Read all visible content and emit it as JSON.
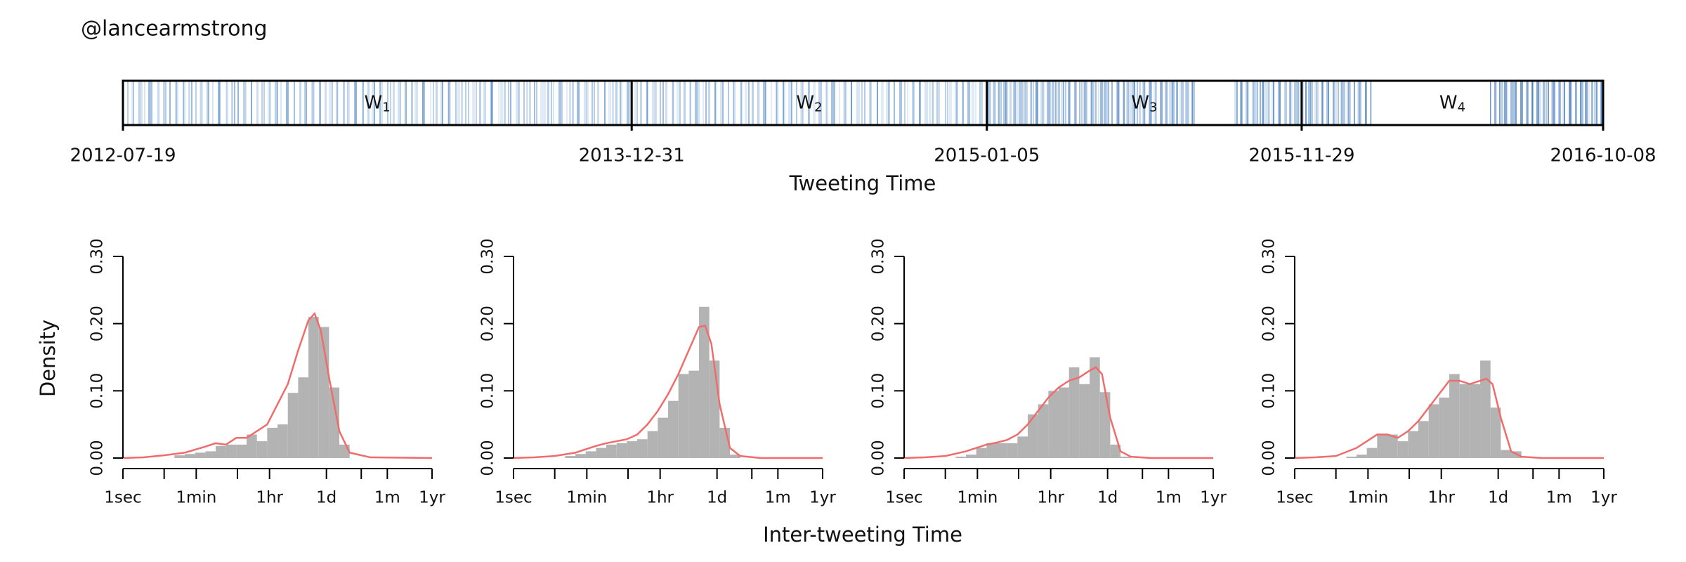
{
  "page": {
    "title": "@lancearmstrong",
    "ylabel": "Density",
    "xlabel": "Inter-tweeting Time"
  },
  "chart_data": [
    {
      "type": "timeline",
      "xlabel": "Tweeting Time",
      "x": [
        "2012-07-19",
        "2013-12-31",
        "2015-01-05",
        "2015-11-29",
        "2016-10-08"
      ],
      "windows": [
        {
          "name": "W",
          "sub": "1"
        },
        {
          "name": "W",
          "sub": "2"
        },
        {
          "name": "W",
          "sub": "3"
        },
        {
          "name": "W",
          "sub": "4"
        }
      ],
      "color": "#3a7cc4"
    },
    {
      "type": "histogram",
      "xlog": true,
      "xlim": [
        1,
        31536000
      ],
      "ylim": [
        0,
        0.3
      ],
      "xticks": [
        {
          "value": 1,
          "label": "1sec"
        },
        {
          "value": 60,
          "label": "1min"
        },
        {
          "value": 3600,
          "label": "1hr"
        },
        {
          "value": 86400,
          "label": "1d"
        },
        {
          "value": 2592000,
          "label": "1m"
        },
        {
          "value": 31536000,
          "label": "1yr"
        }
      ],
      "xminor": [
        10,
        600,
        604800
      ],
      "yticks": [
        {
          "value": 0,
          "label": "0.00"
        },
        {
          "value": 0.1,
          "label": "0.10"
        },
        {
          "value": 0.2,
          "label": "0.20"
        },
        {
          "value": 0.3,
          "label": "0.30"
        }
      ],
      "color": "#b3b3b3",
      "bins": [
        10,
        17.78,
        31.62,
        56.23,
        100,
        177.8,
        316.2,
        562.3,
        1000,
        1778,
        3162,
        5623,
        10000,
        17783,
        31623,
        56234,
        100000,
        177828,
        316228,
        562341,
        1000000
      ],
      "values": [
        0,
        0.004,
        0.006,
        0.008,
        0.01,
        0.018,
        0.02,
        0.02,
        0.035,
        0.025,
        0.045,
        0.05,
        0.097,
        0.12,
        0.21,
        0.195,
        0.105,
        0.02,
        0,
        0
      ],
      "curve": {
        "color": "#f06c6c",
        "x": [
          1,
          3.162,
          10,
          31.62,
          100,
          177.8,
          316.2,
          562.3,
          1000,
          1778,
          3162,
          5623,
          10000,
          17783,
          31623,
          44668,
          63096,
          100000,
          177828,
          316228,
          1000000,
          31536000
        ],
        "values": [
          0,
          0.001,
          0.004,
          0.008,
          0.017,
          0.022,
          0.02,
          0.03,
          0.03,
          0.04,
          0.05,
          0.08,
          0.11,
          0.16,
          0.205,
          0.215,
          0.19,
          0.12,
          0.04,
          0.008,
          0.001,
          0
        ]
      }
    },
    {
      "type": "histogram",
      "xlog": true,
      "xlim": [
        1,
        31536000
      ],
      "ylim": [
        0,
        0.3
      ],
      "xticks": [
        {
          "value": 1,
          "label": "1sec"
        },
        {
          "value": 60,
          "label": "1min"
        },
        {
          "value": 3600,
          "label": "1hr"
        },
        {
          "value": 86400,
          "label": "1d"
        },
        {
          "value": 2592000,
          "label": "1m"
        },
        {
          "value": 31536000,
          "label": "1yr"
        }
      ],
      "xminor": [
        10,
        600,
        604800
      ],
      "yticks": [
        {
          "value": 0,
          "label": "0.00"
        },
        {
          "value": 0.1,
          "label": "0.10"
        },
        {
          "value": 0.2,
          "label": "0.20"
        },
        {
          "value": 0.3,
          "label": "0.30"
        }
      ],
      "color": "#b3b3b3",
      "bins": [
        10,
        17.78,
        31.62,
        56.23,
        100,
        177.8,
        316.2,
        562.3,
        1000,
        1778,
        3162,
        5623,
        10000,
        17783,
        31623,
        56234,
        100000,
        177828,
        316228,
        562341,
        1000000
      ],
      "values": [
        0,
        0.003,
        0.006,
        0.01,
        0.015,
        0.02,
        0.022,
        0.025,
        0.028,
        0.04,
        0.06,
        0.085,
        0.125,
        0.13,
        0.225,
        0.145,
        0.045,
        0.005,
        0,
        0
      ],
      "curve": {
        "color": "#f06c6c",
        "x": [
          1,
          3.162,
          10,
          31.62,
          100,
          177.8,
          316.2,
          562.3,
          1000,
          1778,
          3162,
          5623,
          10000,
          17783,
          31623,
          44668,
          63096,
          100000,
          177828,
          316228,
          1000000,
          31536000
        ],
        "values": [
          0,
          0.001,
          0.003,
          0.008,
          0.018,
          0.022,
          0.025,
          0.028,
          0.035,
          0.05,
          0.07,
          0.095,
          0.125,
          0.16,
          0.195,
          0.197,
          0.17,
          0.08,
          0.015,
          0.003,
          0,
          0
        ]
      }
    },
    {
      "type": "histogram",
      "xlog": true,
      "xlim": [
        1,
        31536000
      ],
      "ylim": [
        0,
        0.3
      ],
      "xticks": [
        {
          "value": 1,
          "label": "1sec"
        },
        {
          "value": 60,
          "label": "1min"
        },
        {
          "value": 3600,
          "label": "1hr"
        },
        {
          "value": 86400,
          "label": "1d"
        },
        {
          "value": 2592000,
          "label": "1m"
        },
        {
          "value": 31536000,
          "label": "1yr"
        }
      ],
      "xminor": [
        10,
        600,
        604800
      ],
      "yticks": [
        {
          "value": 0,
          "label": "0.00"
        },
        {
          "value": 0.1,
          "label": "0.10"
        },
        {
          "value": 0.2,
          "label": "0.20"
        },
        {
          "value": 0.3,
          "label": "0.30"
        }
      ],
      "color": "#b3b3b3",
      "bins": [
        10,
        17.78,
        31.62,
        56.23,
        100,
        177.8,
        316.2,
        562.3,
        1000,
        1778,
        3162,
        5623,
        10000,
        17783,
        31623,
        56234,
        100000,
        177828,
        316228,
        562341,
        1000000
      ],
      "values": [
        0,
        0.002,
        0.005,
        0.015,
        0.022,
        0.022,
        0.022,
        0.032,
        0.065,
        0.08,
        0.1,
        0.105,
        0.135,
        0.11,
        0.15,
        0.098,
        0.02,
        0.002,
        0,
        0
      ],
      "curve": {
        "color": "#f06c6c",
        "x": [
          1,
          3.162,
          10,
          31.62,
          100,
          177.8,
          316.2,
          562.3,
          1000,
          1778,
          3162,
          5623,
          10000,
          17783,
          31623,
          44668,
          63096,
          100000,
          177828,
          316228,
          1000000,
          31536000
        ],
        "values": [
          0,
          0.001,
          0.003,
          0.01,
          0.02,
          0.023,
          0.027,
          0.035,
          0.05,
          0.07,
          0.09,
          0.105,
          0.115,
          0.12,
          0.13,
          0.135,
          0.125,
          0.06,
          0.01,
          0.002,
          0,
          0
        ]
      }
    },
    {
      "type": "histogram",
      "xlog": true,
      "xlim": [
        1,
        31536000
      ],
      "ylim": [
        0,
        0.3
      ],
      "xticks": [
        {
          "value": 1,
          "label": "1sec"
        },
        {
          "value": 60,
          "label": "1min"
        },
        {
          "value": 3600,
          "label": "1hr"
        },
        {
          "value": 86400,
          "label": "1d"
        },
        {
          "value": 2592000,
          "label": "1m"
        },
        {
          "value": 31536000,
          "label": "1yr"
        }
      ],
      "xminor": [
        10,
        600,
        604800
      ],
      "yticks": [
        {
          "value": 0,
          "label": "0.00"
        },
        {
          "value": 0.1,
          "label": "0.10"
        },
        {
          "value": 0.2,
          "label": "0.20"
        },
        {
          "value": 0.3,
          "label": "0.30"
        }
      ],
      "color": "#b3b3b3",
      "bins": [
        10,
        17.78,
        31.62,
        56.23,
        100,
        177.8,
        316.2,
        562.3,
        1000,
        1778,
        3162,
        5623,
        10000,
        17783,
        31623,
        56234,
        100000,
        177828,
        316228,
        562341,
        1000000
      ],
      "values": [
        0,
        0.002,
        0.005,
        0.015,
        0.035,
        0.035,
        0.025,
        0.04,
        0.055,
        0.08,
        0.09,
        0.125,
        0.11,
        0.11,
        0.145,
        0.075,
        0.012,
        0.01,
        0,
        0
      ],
      "curve": {
        "color": "#f06c6c",
        "x": [
          1,
          3.162,
          10,
          31.62,
          100,
          177.8,
          316.2,
          562.3,
          1000,
          1778,
          3162,
          5623,
          10000,
          17783,
          31623,
          44668,
          63096,
          100000,
          177828,
          316228,
          1000000,
          31536000
        ],
        "values": [
          0,
          0.001,
          0.003,
          0.015,
          0.035,
          0.035,
          0.03,
          0.04,
          0.055,
          0.075,
          0.095,
          0.115,
          0.115,
          0.11,
          0.115,
          0.118,
          0.11,
          0.06,
          0.01,
          0.002,
          0,
          0
        ]
      }
    }
  ]
}
